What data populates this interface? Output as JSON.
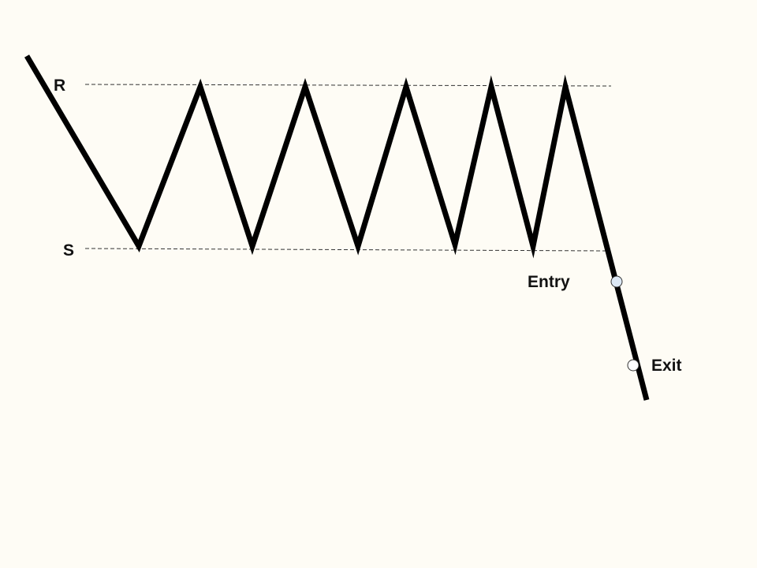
{
  "labels": {
    "resistance": "R",
    "support": "S",
    "entry": "Entry",
    "exit": "Exit"
  },
  "colors": {
    "background": "#fefcf5",
    "price_line": "#000000",
    "level_line": "#333333",
    "entry_marker": "#dce8f5",
    "exit_marker": "#ffffff"
  }
}
